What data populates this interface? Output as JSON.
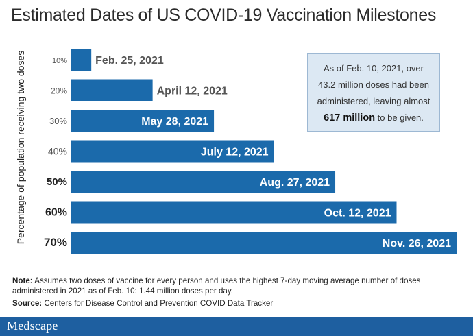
{
  "chart_data": {
    "type": "bar",
    "orientation": "horizontal",
    "title": "Estimated Dates of US COVID-19 Vaccination Milestones",
    "ylabel": "Percentage of population receiving two doses",
    "categories": [
      "10%",
      "20%",
      "30%",
      "40%",
      "50%",
      "60%",
      "70%"
    ],
    "x_dates": [
      "2021-02-25",
      "2021-04-12",
      "2021-05-28",
      "2021-07-12",
      "2021-08-27",
      "2021-10-12",
      "2021-11-26"
    ],
    "x_start_date": "2021-02-10",
    "data_labels": [
      "Feb. 25, 2021",
      "April 12, 2021",
      "May 28, 2021",
      "July 12, 2021",
      "Aug. 27, 2021",
      "Oct. 12, 2021",
      "Nov. 26, 2021"
    ],
    "colors": {
      "bar": "#1b6aab",
      "label_outside": "#555555",
      "label_inside": "#ffffff"
    },
    "grid": false,
    "legend": "none"
  },
  "callout": {
    "line1": "As of Feb. 10, 2021, over",
    "line2": "43.2 million doses had been",
    "line3": "administered, leaving almost",
    "highlight": "617 million",
    "line4_rest": " to be given."
  },
  "note": {
    "label": "Note:",
    "text": " Assumes two doses of vaccine for every person and uses the highest 7-day moving average number of doses administered in 2021 as of Feb. 10: 1.44 million doses per day."
  },
  "source": {
    "label": "Source:",
    "text": " Centers for Disease Control and Prevention COVID Data Tracker"
  },
  "brand": "Medscape"
}
